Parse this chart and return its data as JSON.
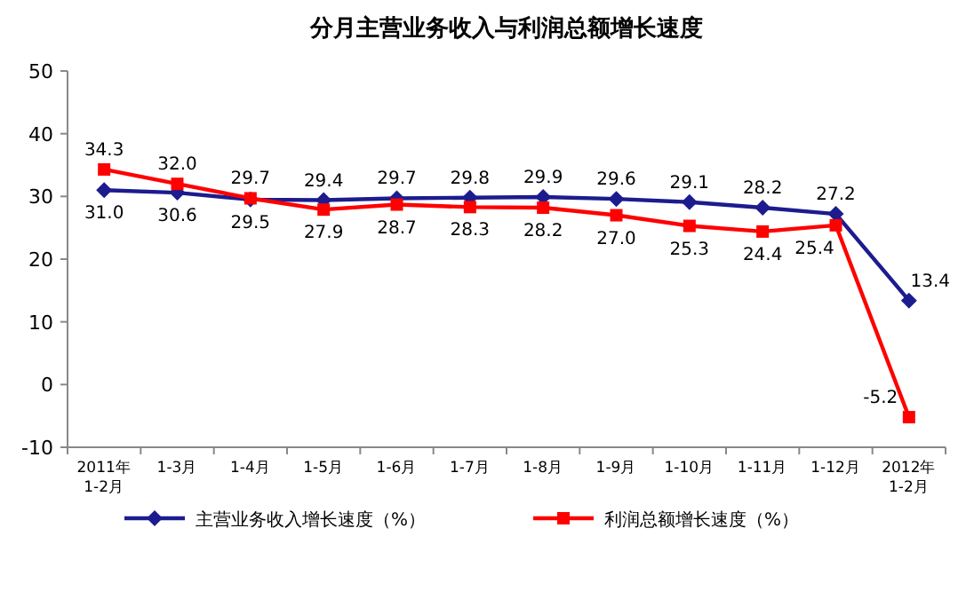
{
  "chart_data": {
    "type": "line",
    "title": "分月主营业务收入与利润总额增长速度",
    "categories": [
      "2011年 1-2月",
      "1-3月",
      "1-4月",
      "1-5月",
      "1-6月",
      "1-7月",
      "1-8月",
      "1-9月",
      "1-10月",
      "1-11月",
      "1-12月",
      "2012年 1-2月"
    ],
    "series": [
      {
        "name": "主营业务收入增长速度（%）",
        "color": "#1c1c8f",
        "marker": "diamond",
        "values": [
          31.0,
          30.6,
          29.5,
          29.4,
          29.7,
          29.8,
          29.9,
          29.6,
          29.1,
          28.2,
          27.2,
          13.4
        ],
        "value_labels": [
          "31.0",
          "30.6",
          "29.5",
          "29.4",
          "29.7",
          "29.8",
          "29.9",
          "29.6",
          "29.1",
          "28.2",
          "27.2",
          "13.4"
        ]
      },
      {
        "name": "利润总额增长速度（%）",
        "color": "#ff0000",
        "marker": "square",
        "values": [
          34.3,
          32.0,
          29.7,
          27.9,
          28.7,
          28.3,
          28.2,
          27.0,
          25.3,
          24.4,
          25.4,
          -5.2
        ],
        "value_labels": [
          "34.3",
          "32.0",
          "29.7",
          "27.9",
          "28.7",
          "28.3",
          "28.2",
          "27.0",
          "25.3",
          "24.4",
          "25.4",
          "-5.2"
        ]
      }
    ],
    "ylim": [
      -10,
      50
    ],
    "yticks": [
      -10,
      0,
      10,
      20,
      30,
      40,
      50
    ],
    "legend": "bottom",
    "grid": false
  }
}
